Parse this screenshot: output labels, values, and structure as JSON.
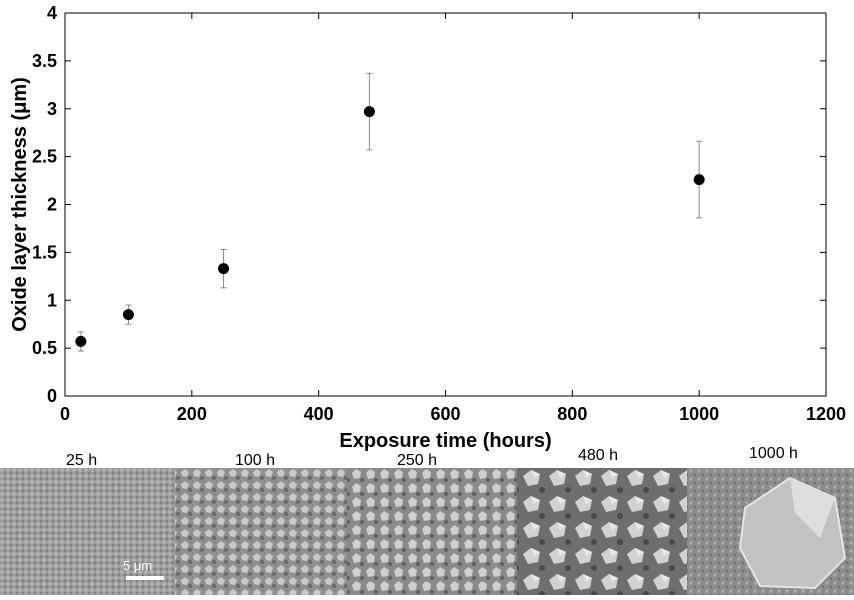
{
  "chart_data": {
    "type": "scatter",
    "xlabel": "Exposure time (hours)",
    "ylabel": "Oxide layer thickness (μm)",
    "xlim": [
      0,
      1200
    ],
    "ylim": [
      0,
      4
    ],
    "xticks": [
      0,
      200,
      400,
      600,
      800,
      1000,
      1200
    ],
    "yticks": [
      0,
      0.5,
      1,
      1.5,
      2,
      2.5,
      3,
      3.5,
      4
    ],
    "ytick_labels": [
      "0",
      "0.5",
      "1",
      "1.5",
      "2",
      "2.5",
      "3",
      "3.5",
      "4"
    ],
    "grid": false,
    "points": [
      {
        "x": 25,
        "y": 0.57,
        "err": 0.1
      },
      {
        "x": 100,
        "y": 0.85,
        "err": 0.1
      },
      {
        "x": 250,
        "y": 1.33,
        "err": 0.2
      },
      {
        "x": 480,
        "y": 2.97,
        "err": 0.4
      },
      {
        "x": 1000,
        "y": 2.26,
        "err": 0.4
      }
    ]
  },
  "micrographs": {
    "labels": [
      "25 h",
      "100 h",
      "250 h",
      "480 h",
      "1000 h"
    ],
    "scalebar_label": "5 μm"
  }
}
